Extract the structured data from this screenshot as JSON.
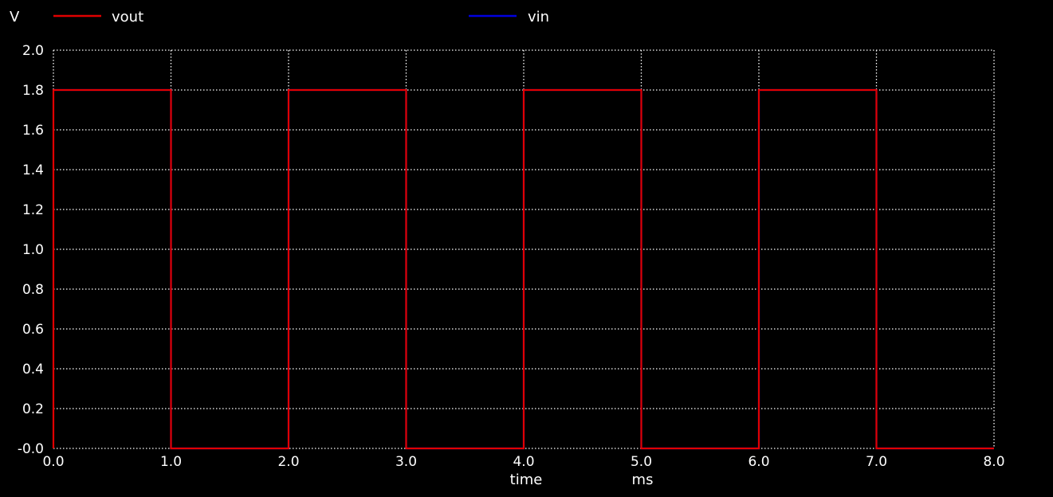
{
  "chart_data": {
    "type": "line",
    "ylabel": "V",
    "xlabel": "time",
    "xunit": "ms",
    "xlim": [
      0.0,
      8.0
    ],
    "ylim": [
      0.0,
      2.0
    ],
    "x_ticks": [
      "0.0",
      "1.0",
      "2.0",
      "3.0",
      "4.0",
      "5.0",
      "6.0",
      "7.0",
      "8.0"
    ],
    "y_ticks": [
      "-0.0",
      "0.2",
      "0.4",
      "0.6",
      "0.8",
      "1.0",
      "1.2",
      "1.4",
      "1.6",
      "1.8",
      "2.0"
    ],
    "grid": true,
    "legend_position": "top",
    "series": [
      {
        "name": "vout",
        "color": "#e00000",
        "x": [
          0.0,
          0.0,
          1.0,
          1.0,
          2.0,
          2.0,
          3.0,
          3.0,
          4.0,
          4.0,
          5.0,
          5.0,
          6.0,
          6.0,
          7.0,
          7.0,
          8.0
        ],
        "y": [
          0.0,
          1.8,
          1.8,
          0.0,
          0.0,
          1.8,
          1.8,
          0.0,
          0.0,
          1.8,
          1.8,
          0.0,
          0.0,
          1.8,
          1.8,
          0.0,
          0.0
        ]
      },
      {
        "name": "vin",
        "color": "#0000e0",
        "x": [
          0.0,
          0.0,
          1.0,
          1.0,
          2.0,
          2.0,
          3.0,
          3.0,
          4.0,
          4.0,
          5.0,
          5.0,
          6.0,
          6.0,
          7.0,
          7.0,
          8.0
        ],
        "y": [
          1.8,
          1.8,
          1.8,
          0.0,
          0.0,
          1.8,
          1.8,
          0.0,
          0.0,
          1.8,
          1.8,
          0.0,
          0.0,
          1.8,
          1.8,
          0.0,
          0.0
        ]
      }
    ]
  }
}
